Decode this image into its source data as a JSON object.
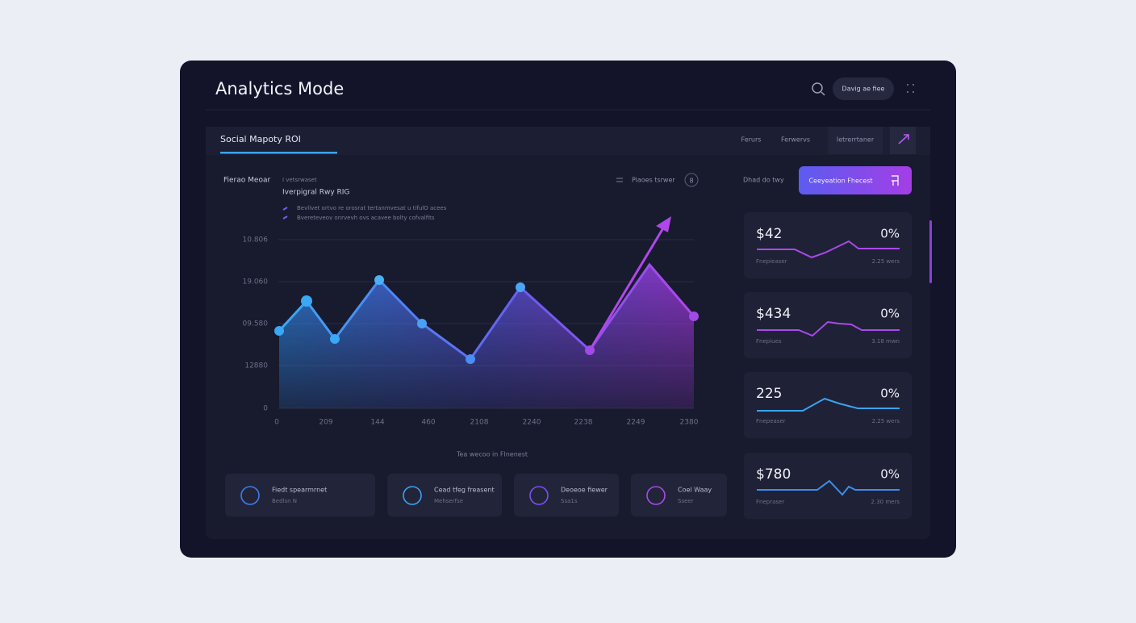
{
  "header": {
    "title": "Analytics Mode",
    "button": "Davig ae fiee"
  },
  "tabs": {
    "active": "Social Mapoty ROI",
    "items": [
      "Ferurs",
      "Ferwervs",
      "Ietrerrtaner"
    ]
  },
  "chart": {
    "label": "Fierao Meoar",
    "subtitle": "I vetsrwaset",
    "heading": "Iverpigral Rwy RIG",
    "legend": [
      "Bevlivet ortvo re orosrat tertanmvesat u tifulO acees",
      "Bvereteveov onrvevh ovs acavee bolty cofvalfits"
    ],
    "filter": "Piaoes tsrwer",
    "badge": "8",
    "y_labels": [
      "10.806",
      "19.060",
      "09.580",
      "12880",
      "0"
    ],
    "x_labels": [
      "0",
      "209",
      "144",
      "460",
      "2108",
      "2240",
      "2238",
      "2249",
      "2380"
    ],
    "caption": "Tea wecoo in Flnenest"
  },
  "side": {
    "label": "Dhad do twy",
    "button": "Ceeyeation Fhecest"
  },
  "stats": [
    {
      "value": "$42",
      "change": "0%",
      "left": "Fnepieaser",
      "right": "2.25 wers"
    },
    {
      "value": "$434",
      "change": "0%",
      "left": "Fnepiues",
      "right": "3.18 mwn"
    },
    {
      "value": "225",
      "change": "0%",
      "left": "Fnepeaser",
      "right": "2.25 wers"
    },
    {
      "value": "$780",
      "change": "0%",
      "left": "Fnepraser",
      "right": "2.30 mers"
    }
  ],
  "cards": [
    {
      "title": "Fiedt spearmrnet",
      "sub": "Bedlsn N"
    },
    {
      "title": "Cead tfeg freasent",
      "sub": "Mehserfse"
    },
    {
      "title": "Deoeoe fiewer",
      "sub": "Ssa1s"
    },
    {
      "title": "Coel Waay",
      "sub": "Sseer"
    }
  ]
}
